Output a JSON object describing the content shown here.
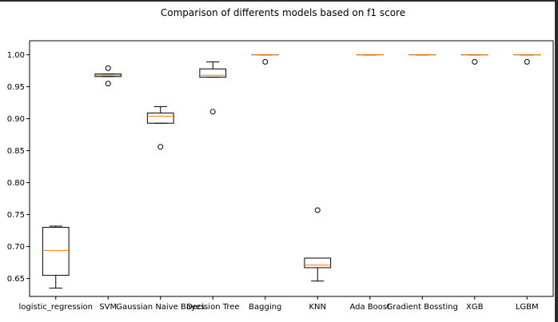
{
  "chart_data": {
    "type": "boxplot",
    "title": "Comparison of differents models based on f1 score",
    "xlabel": "",
    "ylabel": "",
    "ylim": [
      0.622,
      1.022
    ],
    "yticks": [
      0.65,
      0.7,
      0.75,
      0.8,
      0.85,
      0.9,
      0.95,
      1.0
    ],
    "ytick_labels": [
      "0.65",
      "0.70",
      "0.75",
      "0.80",
      "0.85",
      "0.90",
      "0.95",
      "1.00"
    ],
    "grid": false,
    "colors": {
      "box": "#000000",
      "median": "#ff7f0e",
      "flier": "#000000"
    },
    "categories": [
      "logistic_regression",
      "SVM",
      "Gaussian Naive Bayes",
      "Decision Tree",
      "Bagging",
      "KNN",
      "Ada Boost",
      "Gradient Bossting",
      "XGB",
      "LGBM"
    ],
    "boxes": [
      {
        "whislo": 0.635,
        "q1": 0.655,
        "med": 0.694,
        "q3": 0.73,
        "whishi": 0.732,
        "fliers": []
      },
      {
        "whislo": 0.966,
        "q1": 0.966,
        "med": 0.968,
        "q3": 0.97,
        "whishi": 0.97,
        "fliers": [
          0.955,
          0.979
        ]
      },
      {
        "whislo": 0.893,
        "q1": 0.893,
        "med": 0.904,
        "q3": 0.909,
        "whishi": 0.919,
        "fliers": [
          0.856
        ]
      },
      {
        "whislo": 0.965,
        "q1": 0.965,
        "med": 0.968,
        "q3": 0.978,
        "whishi": 0.989,
        "fliers": [
          0.911
        ]
      },
      {
        "whislo": 1.0,
        "q1": 1.0,
        "med": 1.0,
        "q3": 1.0,
        "whishi": 1.0,
        "fliers": [
          0.989
        ]
      },
      {
        "whislo": 0.646,
        "q1": 0.667,
        "med": 0.671,
        "q3": 0.682,
        "whishi": 0.682,
        "fliers": [
          0.757
        ]
      },
      {
        "whislo": 1.0,
        "q1": 1.0,
        "med": 1.0,
        "q3": 1.0,
        "whishi": 1.0,
        "fliers": []
      },
      {
        "whislo": 1.0,
        "q1": 1.0,
        "med": 1.0,
        "q3": 1.0,
        "whishi": 1.0,
        "fliers": []
      },
      {
        "whislo": 1.0,
        "q1": 1.0,
        "med": 1.0,
        "q3": 1.0,
        "whishi": 1.0,
        "fliers": [
          0.989
        ]
      },
      {
        "whislo": 1.0,
        "q1": 1.0,
        "med": 1.0,
        "q3": 1.0,
        "whishi": 1.0,
        "fliers": [
          0.989
        ]
      }
    ]
  }
}
